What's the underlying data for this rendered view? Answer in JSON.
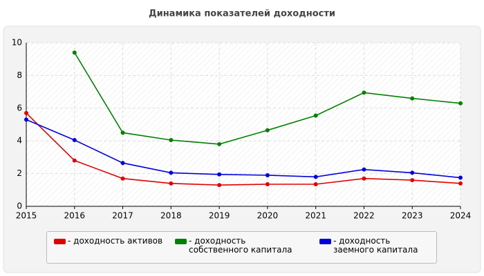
{
  "chart_data": {
    "type": "line",
    "title": "Динамика показателей доходности",
    "categories": [
      "2015",
      "2016",
      "2017",
      "2018",
      "2019",
      "2020",
      "2021",
      "2022",
      "2023",
      "2024"
    ],
    "series": [
      {
        "name": "- доходность активов",
        "color": "#e00000",
        "values": [
          5.7,
          2.8,
          1.7,
          1.4,
          1.3,
          1.35,
          1.35,
          1.7,
          1.6,
          1.4
        ]
      },
      {
        "name": "- доходность собственного капитала",
        "color": "#008000",
        "values": [
          null,
          9.4,
          4.5,
          4.05,
          3.8,
          4.65,
          5.55,
          6.95,
          6.6,
          6.3
        ]
      },
      {
        "name": "- доходность заемного капитала",
        "color": "#0000dd",
        "values": [
          5.3,
          4.05,
          2.65,
          2.05,
          1.95,
          1.9,
          1.8,
          2.25,
          2.05,
          1.75
        ]
      }
    ],
    "ylim": [
      0,
      10
    ],
    "yticks": [
      0,
      2,
      4,
      6,
      8,
      10
    ],
    "grid": true
  }
}
